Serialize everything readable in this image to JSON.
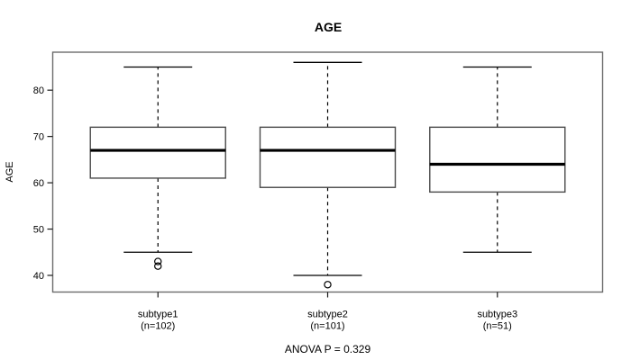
{
  "page": {
    "background": "#ffffff"
  },
  "chart_data": {
    "type": "boxplot",
    "title": "AGE",
    "ylabel": "AGE",
    "xlabel": "",
    "annotation": "ANOVA P = 0.329",
    "yticks": [
      40,
      50,
      60,
      70,
      80
    ],
    "ylim": [
      36.4,
      88.2
    ],
    "grid": false,
    "legend": "none",
    "whisker_style": "dashed",
    "colors": {
      "background": "#ffffff",
      "frame": "#6b6b6b",
      "box_border": "#4a4a4a",
      "box_fill": "#ffffff",
      "median": "#000000",
      "whisker": "#000000",
      "tick": "#1a1a1a",
      "text": "#000000"
    },
    "groups": [
      {
        "label": "subtype1",
        "sublabel": "(n=102)",
        "q1": 61,
        "median": 67,
        "q3": 72,
        "whisker_low": 45,
        "whisker_high": 85,
        "outliers": [
          43,
          42
        ]
      },
      {
        "label": "subtype2",
        "sublabel": "(n=101)",
        "q1": 59,
        "median": 67,
        "q3": 72,
        "whisker_low": 40,
        "whisker_high": 86,
        "outliers": [
          38
        ]
      },
      {
        "label": "subtype3",
        "sublabel": "(n=51)",
        "q1": 58,
        "median": 64,
        "q3": 72,
        "whisker_low": 45,
        "whisker_high": 85,
        "outliers": []
      }
    ]
  }
}
